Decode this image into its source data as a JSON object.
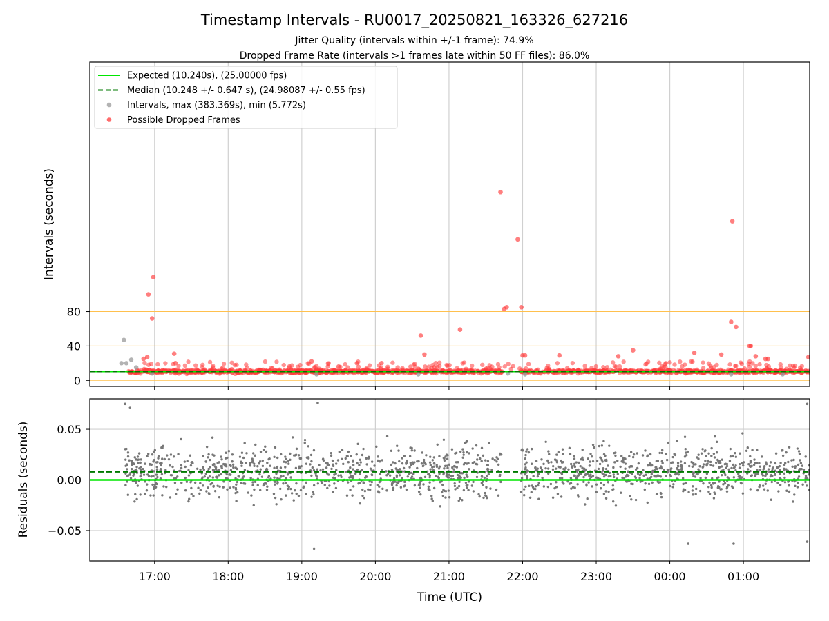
{
  "chart_data": [
    {
      "type": "scatter",
      "title": "Timestamp Intervals - RU0017_20250821_163326_627216",
      "subtitles": [
        "Jitter Quality (intervals within +/-1 frame): 74.9%",
        "Dropped Frame Rate (intervals >1 frames late within 50 FF files): 86.0%"
      ],
      "ylabel": "Intervals (seconds)",
      "xlabel": "",
      "ylim": [
        -7,
        370
      ],
      "yticks": [
        0,
        40,
        80
      ],
      "xlim_hours": [
        16.12,
        25.9
      ],
      "reference_lines": [
        {
          "name": "threshold",
          "y": 0,
          "color": "#ffc04d"
        },
        {
          "name": "threshold",
          "y": 40,
          "color": "#ffc04d"
        },
        {
          "name": "threshold",
          "y": 80,
          "color": "#ffc04d"
        }
      ],
      "expected_value": 10.24,
      "median_value": 10.248,
      "legend_position": "upper-left",
      "legend": [
        {
          "label": "Expected (10.240s), (25.00000 fps)",
          "kind": "line-solid",
          "color": "#00e600"
        },
        {
          "label": "Median (10.248 +/- 0.647 s), (24.98087 +/- 0.55 fps)",
          "kind": "line-dashed",
          "color": "#007a00"
        },
        {
          "label": "Intervals, max (383.369s), min (5.772s)",
          "kind": "dot",
          "color": "#999999"
        },
        {
          "label": "Possible Dropped Frames",
          "kind": "dot",
          "color": "#ff3b3b"
        }
      ],
      "intervals": [
        {
          "t": "16:35",
          "v": 47
        },
        {
          "t": "16:33",
          "v": 20
        },
        {
          "t": "16:37",
          "v": 20
        },
        {
          "t": "16:41",
          "v": 24
        },
        {
          "t": "16:45",
          "v": 15
        },
        {
          "t": "16:58",
          "v": 8
        },
        {
          "t": "19:12",
          "v": 7
        },
        {
          "t": "20:35",
          "v": 7
        },
        {
          "t": "21:48",
          "v": 8
        },
        {
          "t": "22:02",
          "v": 7
        },
        {
          "t": "00:50",
          "v": 7
        },
        {
          "t": "01:32",
          "v": 7
        }
      ],
      "dropped_frames": [
        {
          "t": "16:51",
          "v": 25
        },
        {
          "t": "16:54",
          "v": 27
        },
        {
          "t": "16:55",
          "v": 100
        },
        {
          "t": "16:58",
          "v": 72
        },
        {
          "t": "16:59",
          "v": 120
        },
        {
          "t": "17:16",
          "v": 31
        },
        {
          "t": "17:17",
          "v": 20
        },
        {
          "t": "19:08",
          "v": 22
        },
        {
          "t": "19:30",
          "v": 16
        },
        {
          "t": "19:45",
          "v": 20
        },
        {
          "t": "20:05",
          "v": 20
        },
        {
          "t": "20:37",
          "v": 52
        },
        {
          "t": "20:40",
          "v": 30
        },
        {
          "t": "21:09",
          "v": 59
        },
        {
          "t": "21:42",
          "v": 219
        },
        {
          "t": "21:45",
          "v": 83
        },
        {
          "t": "21:47",
          "v": 85
        },
        {
          "t": "21:49",
          "v": 383
        },
        {
          "t": "21:56",
          "v": 164
        },
        {
          "t": "21:59",
          "v": 85
        },
        {
          "t": "22:00",
          "v": 29
        },
        {
          "t": "22:02",
          "v": 29
        },
        {
          "t": "22:30",
          "v": 29
        },
        {
          "t": "23:18",
          "v": 28
        },
        {
          "t": "23:30",
          "v": 35
        },
        {
          "t": "00:20",
          "v": 32
        },
        {
          "t": "00:42",
          "v": 30
        },
        {
          "t": "00:50",
          "v": 68
        },
        {
          "t": "00:51",
          "v": 185
        },
        {
          "t": "00:54",
          "v": 62
        },
        {
          "t": "01:05",
          "v": 40
        },
        {
          "t": "01:06",
          "v": 40
        },
        {
          "t": "01:10",
          "v": 28
        },
        {
          "t": "01:18",
          "v": 25
        },
        {
          "t": "01:20",
          "v": 25
        },
        {
          "t": "01:53",
          "v": 27
        }
      ]
    },
    {
      "type": "scatter",
      "ylabel": "Residuals (seconds)",
      "xlabel": "Time (UTC)",
      "ylim": [
        -0.08,
        0.08
      ],
      "yticks": [
        0.05,
        0.0,
        -0.05
      ],
      "ytick_labels": [
        "0.05",
        "0.00",
        "−0.05"
      ],
      "xlim_hours": [
        16.12,
        25.9
      ],
      "xticks": [
        "17:00",
        "18:00",
        "19:00",
        "20:00",
        "21:00",
        "22:00",
        "23:00",
        "00:00",
        "01:00"
      ],
      "expected_line": {
        "y": 0.0,
        "color": "#00e600"
      },
      "median_line": {
        "y": 0.008,
        "color": "#007a00"
      },
      "point_color": "#777777",
      "residual_spread_sd": 0.018,
      "data_gap": [
        "21:43",
        "21:58"
      ],
      "notable_points": [
        {
          "t": "16:36",
          "v": 0.075
        },
        {
          "t": "16:40",
          "v": 0.071
        },
        {
          "t": "19:10",
          "v": -0.068
        },
        {
          "t": "19:13",
          "v": 0.076
        },
        {
          "t": "00:15",
          "v": -0.063
        },
        {
          "t": "00:52",
          "v": -0.063
        },
        {
          "t": "01:52",
          "v": 0.075
        },
        {
          "t": "01:52",
          "v": -0.061
        }
      ]
    }
  ]
}
